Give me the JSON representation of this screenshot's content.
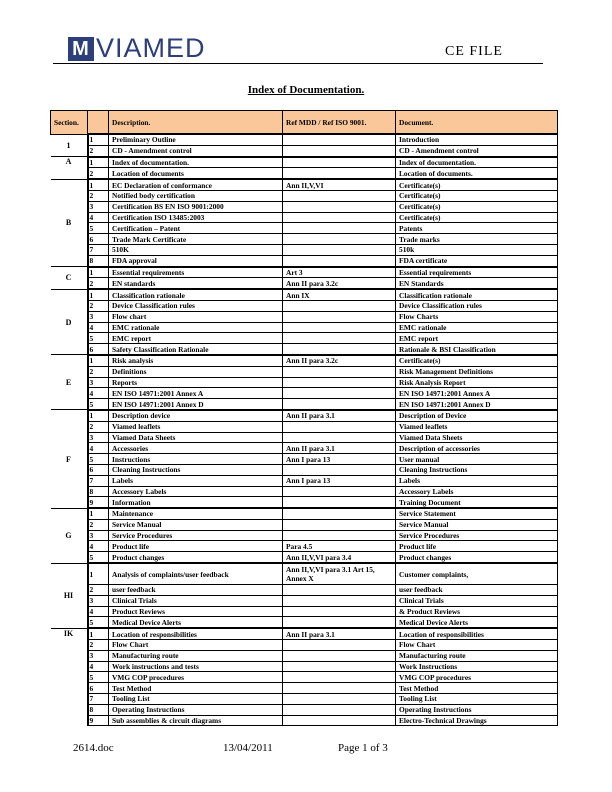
{
  "header": {
    "logo_text": "VIAMED",
    "logo_mark": "M",
    "doc_type": "CE FILE"
  },
  "title": "Index of Documentation.",
  "table": {
    "headers": [
      "Section.",
      "",
      "Description.",
      "Ref MDD / Ref ISO 9001.",
      "Document."
    ],
    "header_color": "#f9c79a",
    "groups": [
      {
        "section": "1",
        "rows": [
          [
            "1",
            "Preliminary Outline",
            "",
            "Introduction"
          ],
          [
            "2",
            "CD - Amendment control",
            "",
            "CD - Amendment control"
          ]
        ]
      },
      {
        "section": "A",
        "rows": [
          [
            "1",
            "Index of documentation.",
            "",
            "Index of documentation."
          ],
          [
            "2",
            "Location of documents",
            "",
            "Location of documents."
          ]
        ]
      },
      {
        "section": "B",
        "rows": [
          [
            "1",
            "EC Declaration of conformance",
            "Ann II,V,VI",
            "Certificate(s)"
          ],
          [
            "2",
            "Notified body certification",
            "",
            "Certificate(s)"
          ],
          [
            "3",
            "Certification BS EN ISO 9001:2000",
            "",
            "Certificate(s)"
          ],
          [
            "4",
            "Certification ISO 13485:2003",
            "",
            "Certificate(s)"
          ],
          [
            "5",
            "Certification – Patent",
            "",
            "Patents"
          ],
          [
            "6",
            "Trade Mark Certificate",
            "",
            "Trade marks"
          ],
          [
            "7",
            "510K",
            "",
            "510k"
          ],
          [
            "8",
            "FDA approval",
            "",
            "FDA certificate"
          ]
        ]
      },
      {
        "section": "C",
        "rows": [
          [
            "1",
            "Essential requirements",
            "Art 3",
            "Essential requirements"
          ],
          [
            "2",
            "EN standards",
            "Ann II para 3.2c",
            "EN Standards"
          ]
        ]
      },
      {
        "section": "D",
        "rows": [
          [
            "1",
            "Classification rationale",
            "Ann IX",
            "Classification rationale"
          ],
          [
            "2",
            "Device Classification rules",
            "",
            "Device Classification rules"
          ],
          [
            "3",
            "Flow chart",
            "",
            "Flow Charts"
          ],
          [
            "4",
            "EMC rationale",
            "",
            "EMC rationale"
          ],
          [
            "5",
            "EMC report",
            "",
            "EMC report"
          ],
          [
            "6",
            "Safety Classification Rationale",
            "",
            "Rationale & BSI Classification"
          ]
        ]
      },
      {
        "section": "E",
        "rows": [
          [
            "1",
            "Risk analysis",
            "Ann II para 3.2c",
            "Certificate(s)"
          ],
          [
            "2",
            "Definitions",
            "",
            "Risk Management Definitions"
          ],
          [
            "3",
            "Reports",
            "",
            "Risk Analysis Report"
          ],
          [
            "4",
            "EN ISO 14971:2001 Annex A",
            "",
            "EN ISO 14971:2001 Annex A"
          ],
          [
            "5",
            "EN ISO 14971:2001 Annex D",
            "",
            "EN ISO 14971:2001 Annex D"
          ]
        ]
      },
      {
        "section": "F",
        "rows": [
          [
            "1",
            "Description device",
            "Ann II para 3.1",
            "Description of Device"
          ],
          [
            "2",
            "Viamed leaflets",
            "",
            "Viamed leaflets"
          ],
          [
            "3",
            "Viamed Data Sheets",
            "",
            "Viamed Data Sheets"
          ],
          [
            "4",
            "Accessories",
            "Ann II para 3.1",
            "Description of accessories"
          ],
          [
            "5",
            "Instructions",
            "Ann I para 13",
            "User manual"
          ],
          [
            "6",
            "Cleaning Instructions",
            "",
            "Cleaning Instructions"
          ],
          [
            "7",
            "Labels",
            "Ann I para 13",
            "Labels"
          ],
          [
            "8",
            "Accessory Labels",
            "",
            "Accessory Labels"
          ],
          [
            "9",
            "Information",
            "",
            "Training Document"
          ]
        ]
      },
      {
        "section": "G",
        "rows": [
          [
            "1",
            "Maintenance",
            "",
            "Service Statement"
          ],
          [
            "2",
            "Service Manual",
            "",
            "Service Manual"
          ],
          [
            "3",
            "Service Procedures",
            "",
            "Service Procedures"
          ],
          [
            "4",
            "Product life",
            "Para 4.5",
            "Product life"
          ],
          [
            "5",
            "Product changes",
            "Ann II,V,VI para 3.4",
            "Product changes"
          ]
        ]
      },
      {
        "section": "HI",
        "rows": [
          [
            "1",
            "Analysis of complaints/user feedback",
            "Ann II,V,VI para 3.1 Art 15, Annex X",
            "Customer complaints,"
          ],
          [
            "2",
            "user feedback",
            "",
            "user feedback"
          ],
          [
            "3",
            "Clinical Trials",
            "",
            "Clinical Trials"
          ],
          [
            "4",
            "Product Reviews",
            "",
            "& Product Reviews"
          ],
          [
            "5",
            "Medical Device Alerts",
            "",
            "Medical Device Alerts"
          ]
        ]
      },
      {
        "section": "IK",
        "rows": [
          [
            "1",
            "Location of responsibilities",
            "Ann II para 3.1",
            "Location of responsibilities"
          ],
          [
            "2",
            "Flow Chart",
            "",
            "Flow Chart"
          ],
          [
            "3",
            "Manufacturing route",
            "",
            "Manufacturing route"
          ],
          [
            "4",
            "Work instructions and tests",
            "",
            "Work Instructions"
          ],
          [
            "5",
            "VMG COP procedures",
            "",
            "VMG COP procedures"
          ],
          [
            "6",
            "Test Method",
            "",
            "Test Method"
          ],
          [
            "7",
            "Tooling List",
            "",
            "Tooling List"
          ],
          [
            "8",
            "Operating Instructions",
            "",
            "Operating Instructions"
          ],
          [
            "9",
            "Sub assemblies & circuit diagrams",
            "",
            "Electro-Technical Drawings"
          ]
        ]
      }
    ]
  },
  "footer": {
    "filename": "2614.doc",
    "date": "13/04/2011",
    "page": "Page 1 of 3"
  }
}
